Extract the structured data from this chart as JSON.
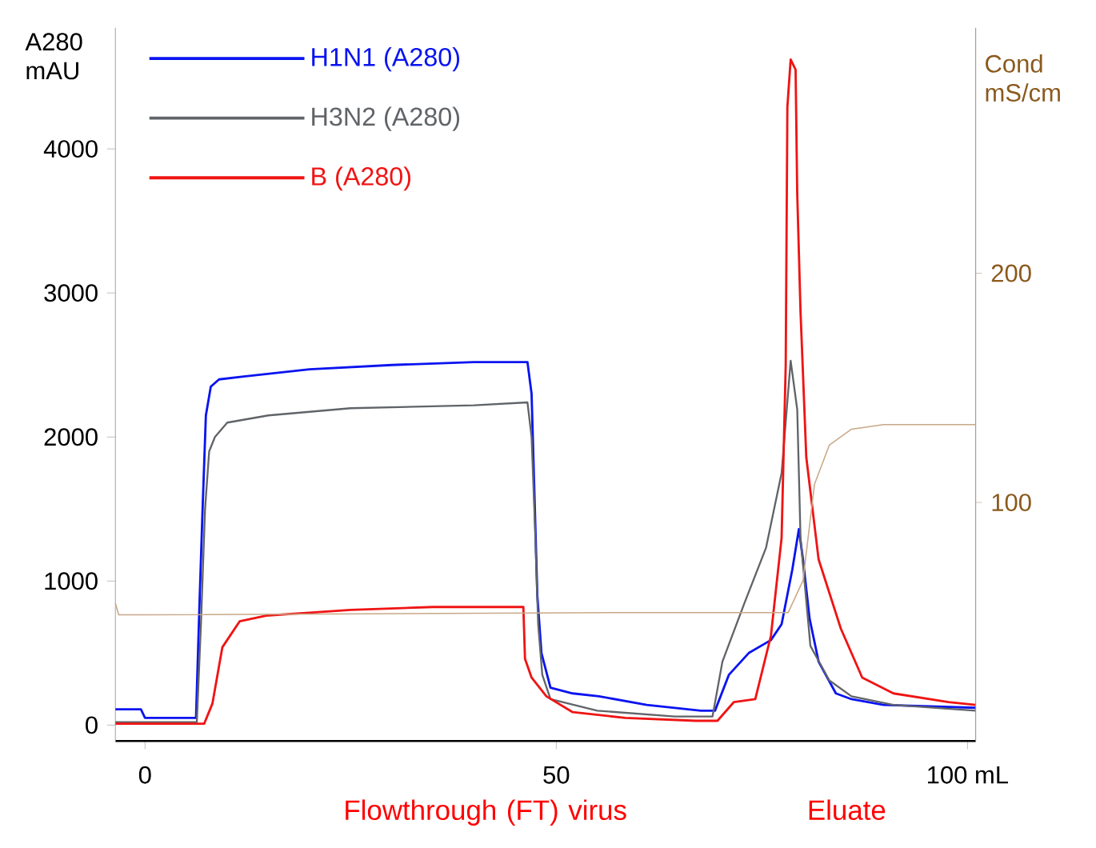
{
  "chart_data": {
    "type": "line",
    "xlim": [
      -3.6,
      101
    ],
    "ylim": [
      -110,
      4840
    ],
    "y2lim": [
      -4,
      307
    ],
    "xticks": [
      0,
      50,
      {
        "value": 100,
        "label": "100 mL"
      }
    ],
    "yticks": [
      0,
      1000,
      2000,
      3000,
      4000
    ],
    "y2ticks": [
      100,
      200
    ],
    "ylabel": "A280 mAU",
    "y2label": "Cond mS/cm",
    "legend": "top left",
    "grid": false,
    "annotations": [
      "Flowthrough (FT) virus",
      "Eluate"
    ],
    "series": [
      {
        "name": "H1N1 (A280)",
        "color": "#0a14f0",
        "x": [
          -3.6,
          -0.5,
          0,
          6.2,
          6.6,
          7.0,
          7.4,
          8.0,
          9,
          12,
          20,
          30,
          40,
          46.5,
          47,
          47.3,
          47.7,
          48.2,
          49.3,
          52,
          55.2,
          61,
          67.6,
          69.3,
          71,
          73.4,
          76.1,
          77.4,
          78.7,
          79.5,
          80,
          80.8,
          81.9,
          84,
          85.9,
          89.8,
          101
        ],
        "values": [
          110,
          110,
          50,
          50,
          800,
          1500,
          2150,
          2350,
          2400,
          2420,
          2470,
          2500,
          2520,
          2520,
          2300,
          1700,
          900,
          500,
          260,
          220,
          200,
          140,
          100,
          100,
          350,
          500,
          590,
          700,
          1080,
          1360,
          1150,
          740,
          440,
          220,
          180,
          140,
          120
        ]
      },
      {
        "name": "H3N2 (A280)",
        "color": "#606468",
        "x": [
          -3.6,
          6.3,
          6.8,
          7.3,
          7.8,
          8.5,
          10,
          15,
          25,
          40,
          46.5,
          47,
          47.4,
          47.8,
          48.3,
          49.3,
          55,
          64.4,
          69,
          70.2,
          72.9,
          75.5,
          77.4,
          78.5,
          79.3,
          79.7,
          80.9,
          83.2,
          85.9,
          91,
          101
        ],
        "values": [
          20,
          20,
          700,
          1500,
          1900,
          2000,
          2100,
          2150,
          2200,
          2220,
          2240,
          2000,
          1400,
          700,
          350,
          180,
          100,
          60,
          60,
          440,
          850,
          1230,
          1750,
          2530,
          2190,
          1300,
          550,
          310,
          200,
          140,
          100
        ]
      },
      {
        "name": "B (A280)",
        "color": "#f01414",
        "x": [
          -3.6,
          7.2,
          8.2,
          9.4,
          11.5,
          14.7,
          20,
          25,
          35,
          46,
          46.2,
          47,
          48.8,
          52,
          58.4,
          67,
          69.6,
          71.6,
          74.2,
          76.1,
          77.4,
          77.9,
          78.1,
          78.5,
          79.1,
          79.3,
          79.7,
          80.4,
          81.9,
          84.6,
          87.2,
          91,
          97.7,
          101
        ],
        "values": [
          10,
          10,
          150,
          540,
          720,
          760,
          780,
          800,
          820,
          820,
          460,
          330,
          200,
          90,
          50,
          30,
          30,
          160,
          180,
          620,
          1300,
          2500,
          4290,
          4620,
          4550,
          3690,
          2870,
          1860,
          1150,
          670,
          330,
          220,
          160,
          140
        ]
      },
      {
        "axis": "y2",
        "color": "#c8a888",
        "x": [
          -3.6,
          -3.2,
          0,
          57,
          78.2,
          80,
          81.4,
          83.2,
          85.9,
          89.8,
          101
        ],
        "values": [
          56,
          51,
          51,
          52,
          52,
          66,
          108,
          125,
          132,
          134,
          134
        ]
      }
    ]
  }
}
